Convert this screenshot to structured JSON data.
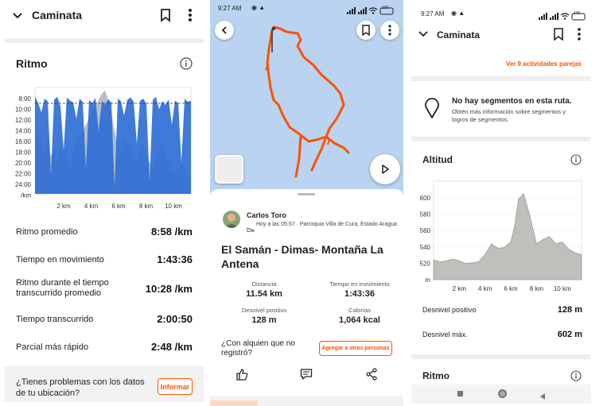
{
  "left": {
    "header_title": "Caminata",
    "section_title": "Ritmo",
    "chart_data": {
      "type": "area",
      "title": "Ritmo",
      "xlabel": "",
      "ylabel": "/km",
      "x_tick_labels": [
        "2 km",
        "4 km",
        "6 km",
        "8 km",
        "10 km"
      ],
      "y_tick_labels": [
        "8:00",
        "10:00",
        "12:00",
        "14:00",
        "16:00",
        "18:00",
        "20:00",
        "22:00",
        "24:00",
        "/km"
      ],
      "y_axis": "pace min/km, inverted (faster at top)",
      "reference_line": "10:28",
      "series": [
        {
          "values": [
            9.5,
            10.5,
            12,
            9.8,
            10.2,
            22,
            10,
            9.5,
            11,
            18,
            9.6,
            10.1,
            10.4,
            13,
            9.8,
            10.3,
            21,
            10,
            10.5,
            9.7,
            15,
            10.2,
            10.8,
            9.9,
            10.4,
            24,
            9.8,
            10.2,
            12.5,
            10,
            9.6,
            10.3,
            17,
            10.1,
            9.8,
            10.6,
            23,
            10,
            9.5,
            11.5,
            10.2,
            10.8,
            9.9,
            14,
            10.1,
            10.5,
            20,
            9.8,
            10.3,
            10.1
          ]
        },
        {
          "values": [
            16,
            15,
            17,
            18,
            16,
            19,
            18,
            20,
            17,
            18,
            19,
            21,
            18,
            17,
            16,
            15,
            14,
            13,
            12,
            11,
            10,
            9,
            8.5,
            10,
            12,
            15,
            17,
            18,
            16,
            17,
            18,
            19,
            20,
            18,
            17,
            19,
            20,
            21,
            19,
            18,
            17,
            19,
            20,
            21,
            22,
            21,
            20,
            21,
            22,
            23
          ]
        }
      ]
    },
    "stats": [
      {
        "label": "Ritmo promedio",
        "value": "8:58 /km"
      },
      {
        "label": "Tiempo en movimiento",
        "value": "1:43:36"
      },
      {
        "label": "Ritmo durante el tiempo transcurrido promedio",
        "value": "10:28 /km"
      },
      {
        "label": "Tiempo transcurrido",
        "value": "2:00:50"
      },
      {
        "label": "Parcial más rápido",
        "value": "2:48 /km"
      }
    ],
    "problem_text": "¿Tienes problemas con los datos de tu ubicación?",
    "report_button": "Informar"
  },
  "middle": {
    "status_time": "9:27 AM",
    "status_battery": "100",
    "athlete_name": "Carlos Toro",
    "activity_meta": "Hoy a las 05:57 · Parroquia Villa de Cura, Estado Aragua",
    "activity_title": "El Samán - Dimas- Montaña La Antena",
    "metrics": [
      {
        "label": "Distancia",
        "value": "11.54 km"
      },
      {
        "label": "Tiempo en movimiento",
        "value": "1:43:36"
      },
      {
        "label": "Desnivel positivo",
        "value": "128 m"
      },
      {
        "label": "Calorías",
        "value": "1,064 kcal"
      }
    ],
    "question": "¿Con alquien que no registró?",
    "add_people_button": "Agregar a otras personas",
    "colors": {
      "map_bg": "#b9d3f0",
      "route": "#fc5200",
      "accent": "#fc5200"
    }
  },
  "right": {
    "status_time": "9:27 AM",
    "status_battery": "100",
    "header_title": "Caminata",
    "matched_link": "Ver 9 actividades parejas",
    "segments_title": "No hay segmentos en esta ruta.",
    "segments_desc": "Obtén más información sobre segmentos y logros de segmentos.",
    "altitude_title": "Altitud",
    "chart_data": {
      "type": "area",
      "title": "Altitud",
      "xlabel": "",
      "ylabel": "m",
      "x_tick_labels": [
        "2 km",
        "4 km",
        "6 km",
        "8 km",
        "10 km"
      ],
      "y_tick_labels": [
        "600",
        "580",
        "560",
        "540",
        "520",
        "m"
      ],
      "ylim": [
        500,
        610
      ],
      "x": [
        0,
        0.5,
        1,
        1.5,
        2,
        2.5,
        3,
        3.5,
        4,
        4.5,
        5,
        5.5,
        6,
        6.3,
        6.6,
        7,
        7.5,
        8,
        8.5,
        9,
        9.5,
        10,
        10.5,
        11,
        11.5
      ],
      "series": [
        {
          "values": [
            522,
            520,
            521,
            523,
            521,
            518,
            519,
            520,
            528,
            540,
            535,
            536,
            542,
            560,
            590,
            596,
            570,
            540,
            545,
            548,
            540,
            542,
            534,
            530,
            528
          ]
        }
      ]
    },
    "stats": [
      {
        "label": "Desnivel positivo",
        "value": "128 m"
      },
      {
        "label": "Desnivel máx.",
        "value": "602 m"
      }
    ],
    "pace_title": "Ritmo"
  }
}
